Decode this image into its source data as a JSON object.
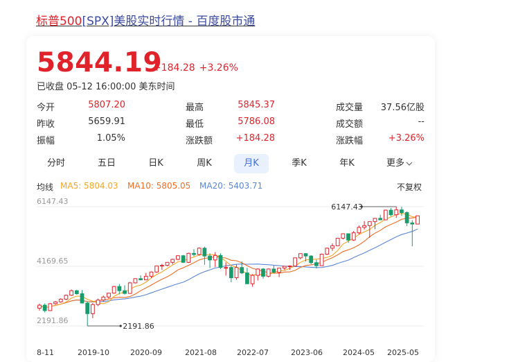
{
  "page": {
    "title_prefix": "标普500",
    "title_mid": "[SPX]",
    "title_suffix": "美股实时行情 - 百度股市通"
  },
  "quote": {
    "price": "5844.19",
    "change": "+184.28",
    "change_pct": "+3.26%",
    "status": "已收盘 05-12 16:00:00 美东时间"
  },
  "stats": [
    [
      {
        "label": "今开",
        "value": "5807.20",
        "color": "red"
      },
      {
        "label": "最高",
        "value": "5845.37",
        "color": "red"
      },
      {
        "label": "成交量",
        "value": "37.56亿股",
        "color": "dark"
      }
    ],
    [
      {
        "label": "昨收",
        "value": "5659.91",
        "color": "dark"
      },
      {
        "label": "最低",
        "value": "5786.08",
        "color": "red"
      },
      {
        "label": "成交额",
        "value": "--",
        "color": "dark"
      }
    ],
    [
      {
        "label": "振幅",
        "value": "1.05%",
        "color": "dark"
      },
      {
        "label": "涨跌额",
        "value": "+184.28",
        "color": "red"
      },
      {
        "label": "涨跌幅",
        "value": "+3.26%",
        "color": "red"
      }
    ]
  ],
  "tabs": [
    "分时",
    "五日",
    "日K",
    "周K",
    "月K",
    "季K",
    "年K",
    "更多"
  ],
  "active_tab": "月K",
  "ma": {
    "label": "均线",
    "ma5": "MA5: 5804.03",
    "ma10": "MA10: 5805.05",
    "ma20": "MA20: 5403.71",
    "adjust": "不复权"
  },
  "colors": {
    "up": "#e0232b",
    "down": "#1a9b6c",
    "ma5": "#f5a623",
    "ma10": "#ee6d24",
    "ma20": "#5b86d6",
    "accent": "#3c6ed9"
  },
  "chart_data": {
    "type": "candlestick",
    "period": "monthly",
    "y_ticks": [
      "6147.43",
      "4169.65",
      "2191.86"
    ],
    "ylim": [
      2191.86,
      6147.43
    ],
    "x_ticks": [
      "8-11",
      "2019-10",
      "2020-09",
      "2021-08",
      "2022-07",
      "2023-06",
      "2024-05",
      "2025-05"
    ],
    "annotations": [
      {
        "text": "6147.43",
        "type": "max"
      },
      {
        "text": "2191.86",
        "type": "min"
      }
    ],
    "candles": [
      {
        "o": 2780,
        "c": 2880,
        "h": 2930,
        "l": 2700
      },
      {
        "o": 2880,
        "c": 2700,
        "h": 2940,
        "l": 2640
      },
      {
        "o": 2700,
        "c": 2930,
        "h": 2950,
        "l": 2690
      },
      {
        "o": 2930,
        "c": 2990,
        "h": 3020,
        "l": 2900
      },
      {
        "o": 2990,
        "c": 3080,
        "h": 3110,
        "l": 2960
      },
      {
        "o": 3080,
        "c": 3210,
        "h": 3230,
        "l": 3050
      },
      {
        "o": 3210,
        "c": 3360,
        "h": 3400,
        "l": 3190
      },
      {
        "o": 3360,
        "c": 3260,
        "h": 3390,
        "l": 3230
      },
      {
        "o": 3260,
        "c": 2950,
        "h": 3380,
        "l": 2950
      },
      {
        "o": 2950,
        "c": 2600,
        "h": 3000,
        "l": 2191.86
      },
      {
        "o": 2600,
        "c": 2900,
        "h": 2950,
        "l": 2450
      },
      {
        "o": 2900,
        "c": 3050,
        "h": 3100,
        "l": 2850
      },
      {
        "o": 3050,
        "c": 3150,
        "h": 3200,
        "l": 2990
      },
      {
        "o": 3150,
        "c": 3280,
        "h": 3290,
        "l": 3100
      },
      {
        "o": 3280,
        "c": 3500,
        "h": 3520,
        "l": 3260
      },
      {
        "o": 3500,
        "c": 3360,
        "h": 3580,
        "l": 3240
      },
      {
        "o": 3360,
        "c": 3270,
        "h": 3540,
        "l": 3230
      },
      {
        "o": 3270,
        "c": 3620,
        "h": 3650,
        "l": 3270
      },
      {
        "o": 3620,
        "c": 3760,
        "h": 3770,
        "l": 3600
      },
      {
        "o": 3760,
        "c": 3720,
        "h": 3870,
        "l": 3700
      },
      {
        "o": 3720,
        "c": 3840,
        "h": 3950,
        "l": 3720
      },
      {
        "o": 3840,
        "c": 3980,
        "h": 4000,
        "l": 3780
      },
      {
        "o": 3980,
        "c": 4180,
        "h": 4190,
        "l": 3950
      },
      {
        "o": 4180,
        "c": 4200,
        "h": 4250,
        "l": 4050
      },
      {
        "o": 4200,
        "c": 4300,
        "h": 4310,
        "l": 4170
      },
      {
        "o": 4300,
        "c": 4400,
        "h": 4420,
        "l": 4230
      },
      {
        "o": 4400,
        "c": 4520,
        "h": 4540,
        "l": 4370
      },
      {
        "o": 4520,
        "c": 4300,
        "h": 4545,
        "l": 4280
      },
      {
        "o": 4300,
        "c": 4600,
        "h": 4620,
        "l": 4280
      },
      {
        "o": 4600,
        "c": 4560,
        "h": 4740,
        "l": 4500
      },
      {
        "o": 4560,
        "c": 4770,
        "h": 4800,
        "l": 4520
      },
      {
        "o": 4770,
        "c": 4510,
        "h": 4820,
        "l": 4220
      },
      {
        "o": 4510,
        "c": 4380,
        "h": 4600,
        "l": 4110
      },
      {
        "o": 4380,
        "c": 4530,
        "h": 4640,
        "l": 4150
      },
      {
        "o": 4530,
        "c": 4130,
        "h": 4600,
        "l": 4080
      },
      {
        "o": 4130,
        "c": 4130,
        "h": 4300,
        "l": 3860
      },
      {
        "o": 4130,
        "c": 3790,
        "h": 4180,
        "l": 3640
      },
      {
        "o": 3790,
        "c": 4130,
        "h": 4230,
        "l": 3720
      },
      {
        "o": 4130,
        "c": 3950,
        "h": 4330,
        "l": 3910
      },
      {
        "o": 3950,
        "c": 3590,
        "h": 4120,
        "l": 3580
      },
      {
        "o": 3590,
        "c": 3870,
        "h": 3910,
        "l": 3490
      },
      {
        "o": 3870,
        "c": 4080,
        "h": 4100,
        "l": 3700
      },
      {
        "o": 4080,
        "c": 3840,
        "h": 4110,
        "l": 3760
      },
      {
        "o": 3840,
        "c": 4080,
        "h": 4100,
        "l": 3800
      },
      {
        "o": 4080,
        "c": 3970,
        "h": 4190,
        "l": 3940
      },
      {
        "o": 3970,
        "c": 4110,
        "h": 4110,
        "l": 3810
      },
      {
        "o": 4110,
        "c": 4170,
        "h": 4170,
        "l": 4050
      },
      {
        "o": 4170,
        "c": 4180,
        "h": 4200,
        "l": 4050
      },
      {
        "o": 4180,
        "c": 4450,
        "h": 4450,
        "l": 4170
      },
      {
        "o": 4450,
        "c": 4590,
        "h": 4600,
        "l": 4400
      },
      {
        "o": 4590,
        "c": 4510,
        "h": 4610,
        "l": 4330
      },
      {
        "o": 4510,
        "c": 4290,
        "h": 4540,
        "l": 4240
      },
      {
        "o": 4290,
        "c": 4190,
        "h": 4390,
        "l": 4100
      },
      {
        "o": 4190,
        "c": 4570,
        "h": 4590,
        "l": 4190
      },
      {
        "o": 4570,
        "c": 4770,
        "h": 4790,
        "l": 4550
      },
      {
        "o": 4770,
        "c": 4850,
        "h": 4930,
        "l": 4680
      },
      {
        "o": 4850,
        "c": 5100,
        "h": 5110,
        "l": 4850
      },
      {
        "o": 5100,
        "c": 5250,
        "h": 5260,
        "l": 5060
      },
      {
        "o": 5250,
        "c": 5040,
        "h": 5260,
        "l": 4950
      },
      {
        "o": 5040,
        "c": 5280,
        "h": 5340,
        "l": 5010
      },
      {
        "o": 5280,
        "c": 5460,
        "h": 5520,
        "l": 5230
      },
      {
        "o": 5460,
        "c": 5520,
        "h": 5670,
        "l": 5390
      },
      {
        "o": 5520,
        "c": 5650,
        "h": 5660,
        "l": 5120
      },
      {
        "o": 5650,
        "c": 5760,
        "h": 5770,
        "l": 5400
      },
      {
        "o": 5760,
        "c": 5710,
        "h": 5880,
        "l": 5700
      },
      {
        "o": 5710,
        "c": 6030,
        "h": 6050,
        "l": 5700
      },
      {
        "o": 6030,
        "c": 5880,
        "h": 6100,
        "l": 5830
      },
      {
        "o": 5880,
        "c": 6040,
        "h": 6147.43,
        "l": 5780
      },
      {
        "o": 6040,
        "c": 5950,
        "h": 6147.43,
        "l": 5840
      },
      {
        "o": 5950,
        "c": 5610,
        "h": 5990,
        "l": 5500
      },
      {
        "o": 5610,
        "c": 5570,
        "h": 5700,
        "l": 4830
      },
      {
        "o": 5570,
        "c": 5844.19,
        "h": 5845.37,
        "l": 5560
      }
    ]
  }
}
